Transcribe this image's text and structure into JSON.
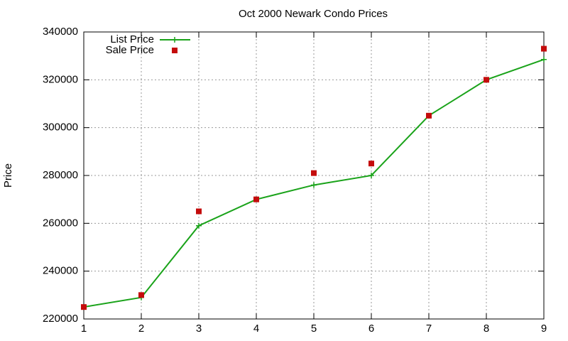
{
  "chart_data": {
    "type": "line",
    "title": "Oct 2000 Newark Condo Prices",
    "y_label": "Price",
    "x": [
      1,
      2,
      3,
      4,
      5,
      6,
      7,
      8,
      9
    ],
    "series": [
      {
        "name": "List Price",
        "color": "#1aa31a",
        "style": "linespoints",
        "values": [
          225000,
          229000,
          259000,
          270000,
          276000,
          280000,
          305000,
          320000,
          328500
        ]
      },
      {
        "name": "Sale Price",
        "color": "#c40c0c",
        "style": "points",
        "values": [
          225000,
          230000,
          265000,
          270000,
          281000,
          285000,
          305000,
          320000,
          333000
        ]
      }
    ],
    "xlim": [
      1,
      9
    ],
    "xticks": [
      1,
      2,
      3,
      4,
      5,
      6,
      7,
      8,
      9
    ],
    "ylim": [
      220000,
      340000
    ],
    "yticks": [
      220000,
      240000,
      260000,
      280000,
      300000,
      320000,
      340000
    ],
    "grid": true,
    "legend": "top-left"
  }
}
